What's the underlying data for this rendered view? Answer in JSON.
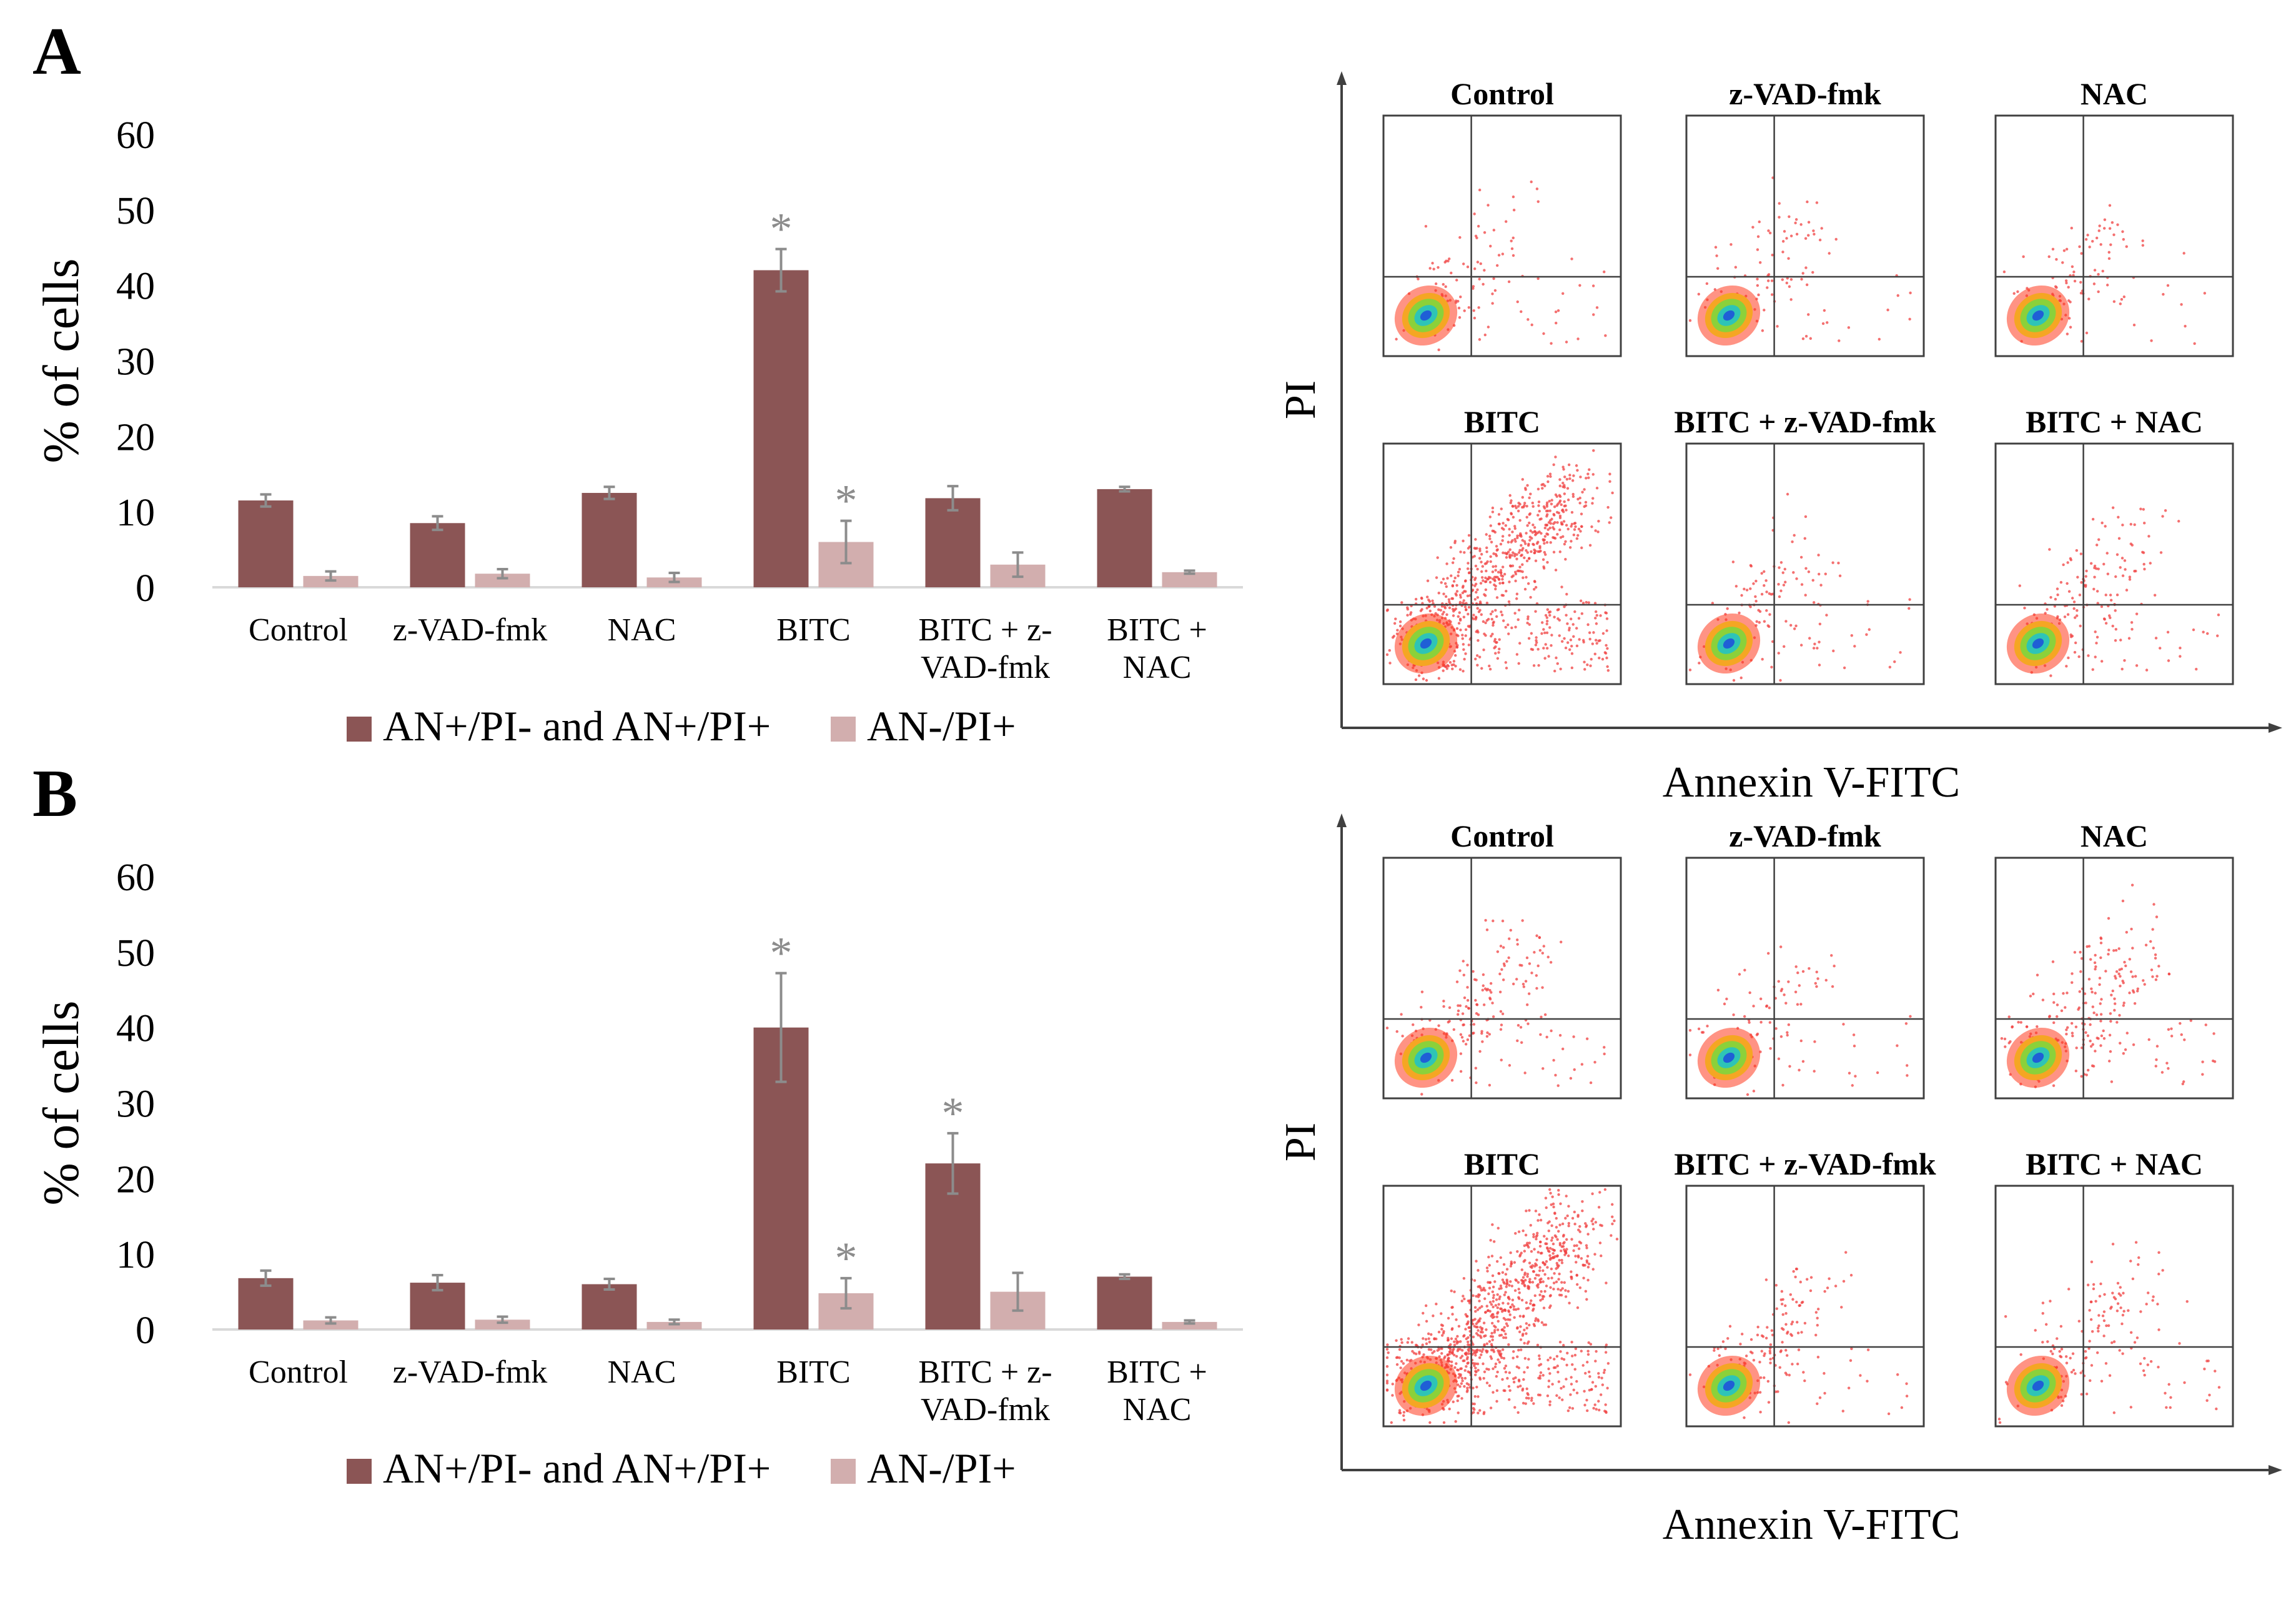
{
  "colors": {
    "dark_bar": "#8b5555",
    "light_bar": "#d2aeae",
    "error_bar": "#8c8c8c",
    "star": "#8c8c8c",
    "axis": "#d9d9d9",
    "frame": "#404040",
    "text": "#000000"
  },
  "panels": {
    "a": {
      "label": "A"
    },
    "b": {
      "label": "B"
    }
  },
  "chart_data": [
    {
      "id": "A",
      "type": "bar",
      "ylabel": "% of cells",
      "ylim": [
        0,
        60
      ],
      "yticks": [
        "0",
        "10",
        "20",
        "30",
        "40",
        "50",
        "60"
      ],
      "categories": [
        [
          "Control"
        ],
        [
          "z-VAD-fmk"
        ],
        [
          "NAC"
        ],
        [
          "BITC"
        ],
        [
          "BITC + z-",
          "VAD-fmk"
        ],
        [
          "BITC +",
          "NAC"
        ]
      ],
      "series": [
        {
          "name": "AN+/PI- and AN+/PI+",
          "color": "#8b5555",
          "values": [
            11.5,
            8.5,
            12.5,
            42,
            11.8,
            13
          ],
          "errors": [
            0.8,
            0.9,
            0.8,
            2.8,
            1.6,
            0.3
          ],
          "significant": [
            false,
            false,
            false,
            true,
            false,
            false
          ]
        },
        {
          "name": "AN-/PI+",
          "color": "#d2aeae",
          "values": [
            1.5,
            1.8,
            1.3,
            6,
            3,
            2
          ],
          "errors": [
            0.6,
            0.6,
            0.6,
            2.8,
            1.6,
            0.2
          ],
          "significant": [
            false,
            false,
            false,
            true,
            false,
            false
          ]
        }
      ],
      "legend": [
        "AN+/PI- and AN+/PI+",
        "AN-/PI+"
      ],
      "flow_cytometry": {
        "xlabel": "Annexin V-FITC",
        "ylabel": "PI",
        "plots": [
          {
            "title": "Control",
            "density": 120,
            "spread": 0.55
          },
          {
            "title": "z-VAD-fmk",
            "density": 100,
            "spread": 0.55
          },
          {
            "title": "NAC",
            "density": 110,
            "spread": 0.45
          },
          {
            "title": "BITC",
            "density": 900,
            "spread": 0.9
          },
          {
            "title": "BITC + z-VAD-fmk",
            "density": 130,
            "spread": 0.55
          },
          {
            "title": "BITC + NAC",
            "density": 180,
            "spread": 0.65
          }
        ]
      }
    },
    {
      "id": "B",
      "type": "bar",
      "ylabel": "% of cells",
      "ylim": [
        0,
        60
      ],
      "yticks": [
        "0",
        "10",
        "20",
        "30",
        "40",
        "50",
        "60"
      ],
      "categories": [
        [
          "Control"
        ],
        [
          "z-VAD-fmk"
        ],
        [
          "NAC"
        ],
        [
          "BITC"
        ],
        [
          "BITC + z-",
          "VAD-fmk"
        ],
        [
          "BITC +",
          "NAC"
        ]
      ],
      "series": [
        {
          "name": "AN+/PI- and AN+/PI+",
          "color": "#8b5555",
          "values": [
            6.8,
            6.2,
            6,
            40,
            22,
            7
          ],
          "errors": [
            1.0,
            1.0,
            0.7,
            7.2,
            4.0,
            0.3
          ],
          "significant": [
            false,
            false,
            false,
            true,
            true,
            false
          ]
        },
        {
          "name": "AN-/PI+",
          "color": "#d2aeae",
          "values": [
            1.2,
            1.3,
            1,
            4.8,
            5,
            1
          ],
          "errors": [
            0.4,
            0.4,
            0.3,
            2.0,
            2.5,
            0.2
          ],
          "significant": [
            false,
            false,
            false,
            true,
            false,
            false
          ]
        }
      ],
      "legend": [
        "AN+/PI- and AN+/PI+",
        "AN-/PI+"
      ],
      "flow_cytometry": {
        "xlabel": "Annexin V-FITC",
        "ylabel": "PI",
        "plots": [
          {
            "title": "Control",
            "density": 200,
            "spread": 0.65
          },
          {
            "title": "z-VAD-fmk",
            "density": 100,
            "spread": 0.55
          },
          {
            "title": "NAC",
            "density": 230,
            "spread": 0.65
          },
          {
            "title": "BITC",
            "density": 1100,
            "spread": 0.95
          },
          {
            "title": "BITC + z-VAD-fmk",
            "density": 160,
            "spread": 0.6
          },
          {
            "title": "BITC + NAC",
            "density": 170,
            "spread": 0.65
          }
        ]
      }
    }
  ]
}
